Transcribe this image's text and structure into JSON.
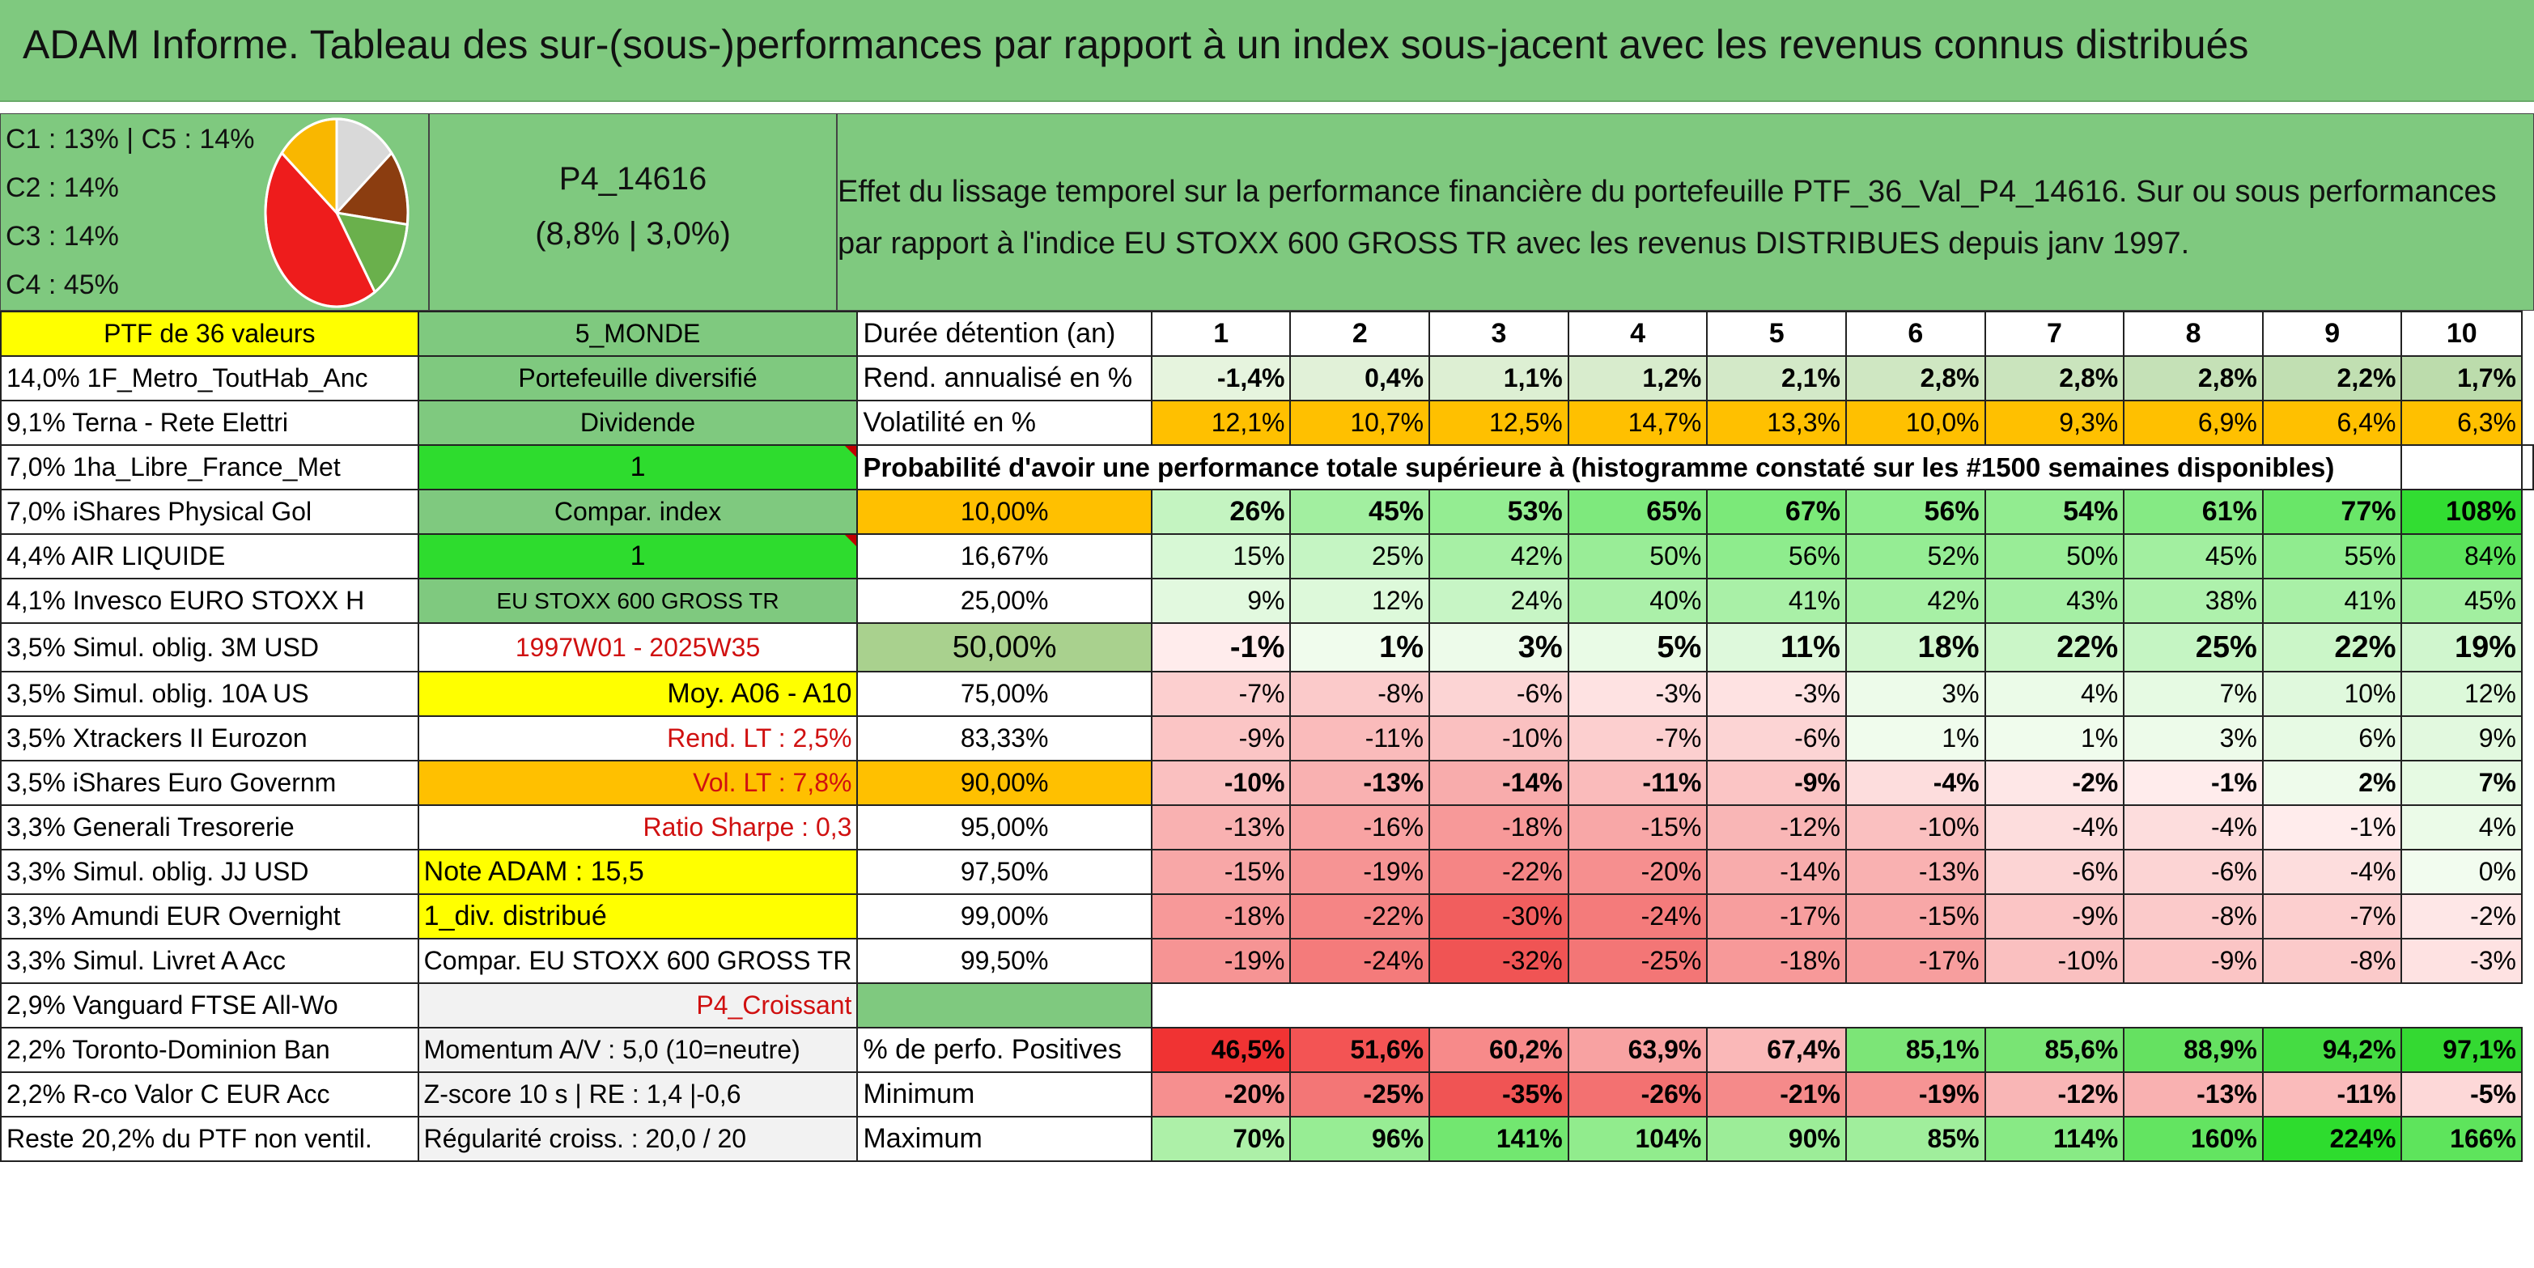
{
  "title": "ADAM Informe. Tableau des sur-(sous-)performances par rapport à un index sous-jacent avec les revenus connus distribués",
  "legend": [
    "C1 : 13% | C5 : 14%",
    "C2 : 14%",
    "C3 : 14%",
    "C4 : 45%"
  ],
  "pie": [
    {
      "name": "C1",
      "value": 13,
      "color": "#8b3d10"
    },
    {
      "name": "C2",
      "value": 14,
      "color": "#6ab04c"
    },
    {
      "name": "C3",
      "value": 14,
      "color": "#f9b700"
    },
    {
      "name": "C4",
      "value": 45,
      "color": "#ee1c1c"
    },
    {
      "name": "C5",
      "value": 14,
      "color": "#d9d9d9"
    }
  ],
  "portfolio": {
    "code": "P4_14616",
    "perf": "(8,8% | 3,0%)"
  },
  "description": "Effet du lissage temporel sur la performance financière du portefeuille PTF_36_Val_P4_14616. Sur ou sous performances par rapport à l'indice EU STOXX 600 GROSS TR avec les revenus DISTRIBUES depuis janv 1997.",
  "rows": [
    {
      "a": "PTF de 36 valeurs",
      "b": "5_MONDE",
      "c": "Durée détention (an)",
      "v": [
        "1",
        "2",
        "3",
        "4",
        "5",
        "6",
        "7",
        "8",
        "9",
        "10"
      ]
    },
    {
      "a": "14,0% 1F_Metro_ToutHab_Anc",
      "b": "Portefeuille diversifié",
      "c": "Rend. annualisé en %",
      "v": [
        "-1,4%",
        "0,4%",
        "1,1%",
        "1,2%",
        "2,1%",
        "2,8%",
        "2,8%",
        "2,8%",
        "2,2%",
        "1,7%"
      ]
    },
    {
      "a": "9,1% Terna - Rete Elettri",
      "b": "Dividende",
      "c": "Volatilité en %",
      "v": [
        "12,1%",
        "10,7%",
        "12,5%",
        "14,7%",
        "13,3%",
        "10,0%",
        "9,3%",
        "6,9%",
        "6,4%",
        "6,3%"
      ]
    },
    {
      "a": "7,0% 1ha_Libre_France_Met",
      "b": "1",
      "c": "Probabilité d'avoir une performance totale supérieure à (histogramme constaté sur les #1500 semaines disponibles)",
      "v": []
    },
    {
      "a": "7,0% iShares Physical Gol",
      "b": "Compar. index",
      "c": "10,00%",
      "v": [
        "26%",
        "45%",
        "53%",
        "65%",
        "67%",
        "56%",
        "54%",
        "61%",
        "77%",
        "108%"
      ]
    },
    {
      "a": "4,4% AIR LIQUIDE",
      "b": "1",
      "c": "16,67%",
      "v": [
        "15%",
        "25%",
        "42%",
        "50%",
        "56%",
        "52%",
        "50%",
        "45%",
        "55%",
        "84%"
      ]
    },
    {
      "a": "4,1% Invesco EURO STOXX H",
      "b": "EU STOXX 600 GROSS TR",
      "c": "25,00%",
      "v": [
        "9%",
        "12%",
        "24%",
        "40%",
        "41%",
        "42%",
        "43%",
        "38%",
        "41%",
        "45%"
      ]
    },
    {
      "a": "3,5% Simul. oblig. 3M USD",
      "b": "1997W01 - 2025W35",
      "c": "50,00%",
      "v": [
        "-1%",
        "1%",
        "3%",
        "5%",
        "11%",
        "18%",
        "22%",
        "25%",
        "22%",
        "19%"
      ]
    },
    {
      "a": "3,5% Simul. oblig. 10A US",
      "b": "Moy. A06 - A10",
      "c": "75,00%",
      "v": [
        "-7%",
        "-8%",
        "-6%",
        "-3%",
        "-3%",
        "3%",
        "4%",
        "7%",
        "10%",
        "12%"
      ]
    },
    {
      "a": "3,5% Xtrackers II Eurozon",
      "b": "Rend. LT : 2,5%",
      "c": "83,33%",
      "v": [
        "-9%",
        "-11%",
        "-10%",
        "-7%",
        "-6%",
        "1%",
        "1%",
        "3%",
        "6%",
        "9%"
      ]
    },
    {
      "a": "3,5% iShares Euro Governm",
      "b": "Vol. LT : 7,8%",
      "c": "90,00%",
      "v": [
        "-10%",
        "-13%",
        "-14%",
        "-11%",
        "-9%",
        "-4%",
        "-2%",
        "-1%",
        "2%",
        "7%"
      ]
    },
    {
      "a": "3,3% Generali Tresorerie",
      "b": "Ratio Sharpe : 0,3",
      "c": "95,00%",
      "v": [
        "-13%",
        "-16%",
        "-18%",
        "-15%",
        "-12%",
        "-10%",
        "-4%",
        "-4%",
        "-1%",
        "4%"
      ]
    },
    {
      "a": "3,3% Simul. oblig. JJ USD",
      "b": "Note ADAM : 15,5",
      "c": "97,50%",
      "v": [
        "-15%",
        "-19%",
        "-22%",
        "-20%",
        "-14%",
        "-13%",
        "-6%",
        "-6%",
        "-4%",
        "0%"
      ]
    },
    {
      "a": "3,3% Amundi EUR Overnight",
      "b": "1_div. distribué",
      "c": "99,00%",
      "v": [
        "-18%",
        "-22%",
        "-30%",
        "-24%",
        "-17%",
        "-15%",
        "-9%",
        "-8%",
        "-7%",
        "-2%"
      ]
    },
    {
      "a": "3,3% Simul. Livret A Acc",
      "b": "Compar. EU STOXX 600 GROSS TR",
      "c": "99,50%",
      "v": [
        "-19%",
        "-24%",
        "-32%",
        "-25%",
        "-18%",
        "-17%",
        "-10%",
        "-9%",
        "-8%",
        "-3%"
      ]
    },
    {
      "a": "2,9% Vanguard FTSE All-Wo",
      "b": "P4_Croissant",
      "c": "",
      "v": []
    },
    {
      "a": "2,2% Toronto-Dominion Ban",
      "b": "Momentum A/V : 5,0 (10=neutre)",
      "c": "% de perfo. Positives",
      "v": [
        "46,5%",
        "51,6%",
        "60,2%",
        "63,9%",
        "67,4%",
        "85,1%",
        "85,6%",
        "88,9%",
        "94,2%",
        "97,1%"
      ]
    },
    {
      "a": "2,2% R-co Valor C EUR Acc",
      "b": "Z-score 10 s | RE : 1,4 |-0,6",
      "c": "Minimum",
      "v": [
        "-20%",
        "-25%",
        "-35%",
        "-26%",
        "-21%",
        "-19%",
        "-12%",
        "-13%",
        "-11%",
        "-5%"
      ]
    },
    {
      "a": "Reste 20,2% du PTF non ventil.",
      "b": "Régularité croiss. : 20,0 / 20",
      "c": "Maximum",
      "v": [
        "70%",
        "96%",
        "141%",
        "104%",
        "90%",
        "85%",
        "114%",
        "160%",
        "224%",
        "166%"
      ]
    }
  ]
}
